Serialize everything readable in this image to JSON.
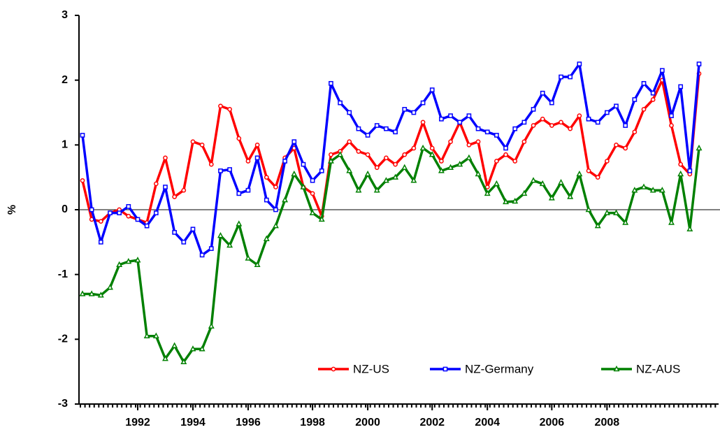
{
  "chart_data": {
    "type": "line",
    "y_label": "%",
    "categories": [
      null,
      null,
      null,
      null,
      null,
      null,
      "1992",
      null,
      null,
      null,
      null,
      null,
      "1994",
      null,
      null,
      null,
      null,
      null,
      "1996",
      null,
      null,
      null,
      null,
      null,
      null,
      "1998",
      null,
      null,
      null,
      null,
      null,
      "2000",
      null,
      null,
      null,
      null,
      null,
      null,
      "2002",
      null,
      null,
      null,
      null,
      null,
      "2004",
      null,
      null,
      null,
      null,
      null,
      null,
      "2006",
      null,
      null,
      null,
      null,
      null,
      "2008",
      null,
      null,
      null,
      null,
      null,
      null,
      null,
      null,
      null,
      null
    ],
    "series": [
      {
        "name": "NZ-US",
        "color": "#ff0000",
        "marker": "circle",
        "values": [
          0.45,
          -0.15,
          -0.18,
          -0.05,
          0,
          -0.1,
          -0.15,
          -0.2,
          0.4,
          0.8,
          0.2,
          0.3,
          1.05,
          1.0,
          0.7,
          1.6,
          1.55,
          1.1,
          0.75,
          1.0,
          0.5,
          0.35,
          0.8,
          0.95,
          0.35,
          0.25,
          -0.1,
          0.85,
          0.9,
          1.05,
          0.9,
          0.85,
          0.65,
          0.8,
          0.7,
          0.85,
          0.95,
          1.35,
          0.95,
          0.75,
          1.05,
          1.35,
          1.0,
          1.05,
          0.35,
          0.75,
          0.85,
          0.75,
          1.05,
          1.3,
          1.4,
          1.3,
          1.35,
          1.25,
          1.45,
          0.6,
          0.5,
          0.75,
          1.0,
          0.95,
          1.2,
          1.55,
          1.7,
          2.0,
          1.3,
          0.7,
          0.55,
          2.1
        ]
      },
      {
        "name": "NZ-Germany",
        "color": "#0000ff",
        "marker": "square",
        "values": [
          1.15,
          0,
          -0.5,
          -0.05,
          -0.05,
          0.05,
          -0.15,
          -0.25,
          -0.05,
          0.35,
          -0.35,
          -0.5,
          -0.3,
          -0.7,
          -0.6,
          0.6,
          0.62,
          0.25,
          0.3,
          0.8,
          0.15,
          0,
          0.75,
          1.05,
          0.7,
          0.45,
          0.6,
          1.95,
          1.65,
          1.5,
          1.25,
          1.15,
          1.3,
          1.25,
          1.2,
          1.55,
          1.5,
          1.65,
          1.85,
          1.4,
          1.45,
          1.35,
          1.45,
          1.25,
          1.2,
          1.15,
          0.95,
          1.25,
          1.35,
          1.55,
          1.8,
          1.65,
          2.05,
          2.05,
          2.25,
          1.4,
          1.35,
          1.5,
          1.6,
          1.3,
          1.7,
          1.95,
          1.8,
          2.15,
          1.45,
          1.9,
          0.6,
          2.25
        ]
      },
      {
        "name": "NZ-AUS",
        "color": "#008000",
        "marker": "triangle",
        "values": [
          -1.3,
          -1.3,
          -1.32,
          -1.2,
          -0.85,
          -0.8,
          -0.78,
          -1.95,
          -1.95,
          -2.3,
          -2.1,
          -2.35,
          -2.15,
          -2.15,
          -1.8,
          -0.4,
          -0.55,
          -0.22,
          -0.75,
          -0.85,
          -0.45,
          -0.25,
          0.15,
          0.55,
          0.35,
          -0.05,
          -0.15,
          0.75,
          0.85,
          0.6,
          0.3,
          0.55,
          0.3,
          0.45,
          0.5,
          0.65,
          0.45,
          0.95,
          0.85,
          0.6,
          0.65,
          0.7,
          0.8,
          0.55,
          0.25,
          0.4,
          0.12,
          0.13,
          0.25,
          0.45,
          0.4,
          0.18,
          0.42,
          0.2,
          0.55,
          0,
          -0.25,
          -0.05,
          -0.05,
          -0.2,
          0.3,
          0.35,
          0.3,
          0.3,
          -0.2,
          0.55,
          -0.3,
          0.95
        ]
      }
    ],
    "ylim": [
      -3,
      3
    ],
    "yticks": [
      -3,
      -2,
      -1,
      0,
      1,
      2,
      3
    ],
    "zero_line": true,
    "legend": "lower right"
  }
}
